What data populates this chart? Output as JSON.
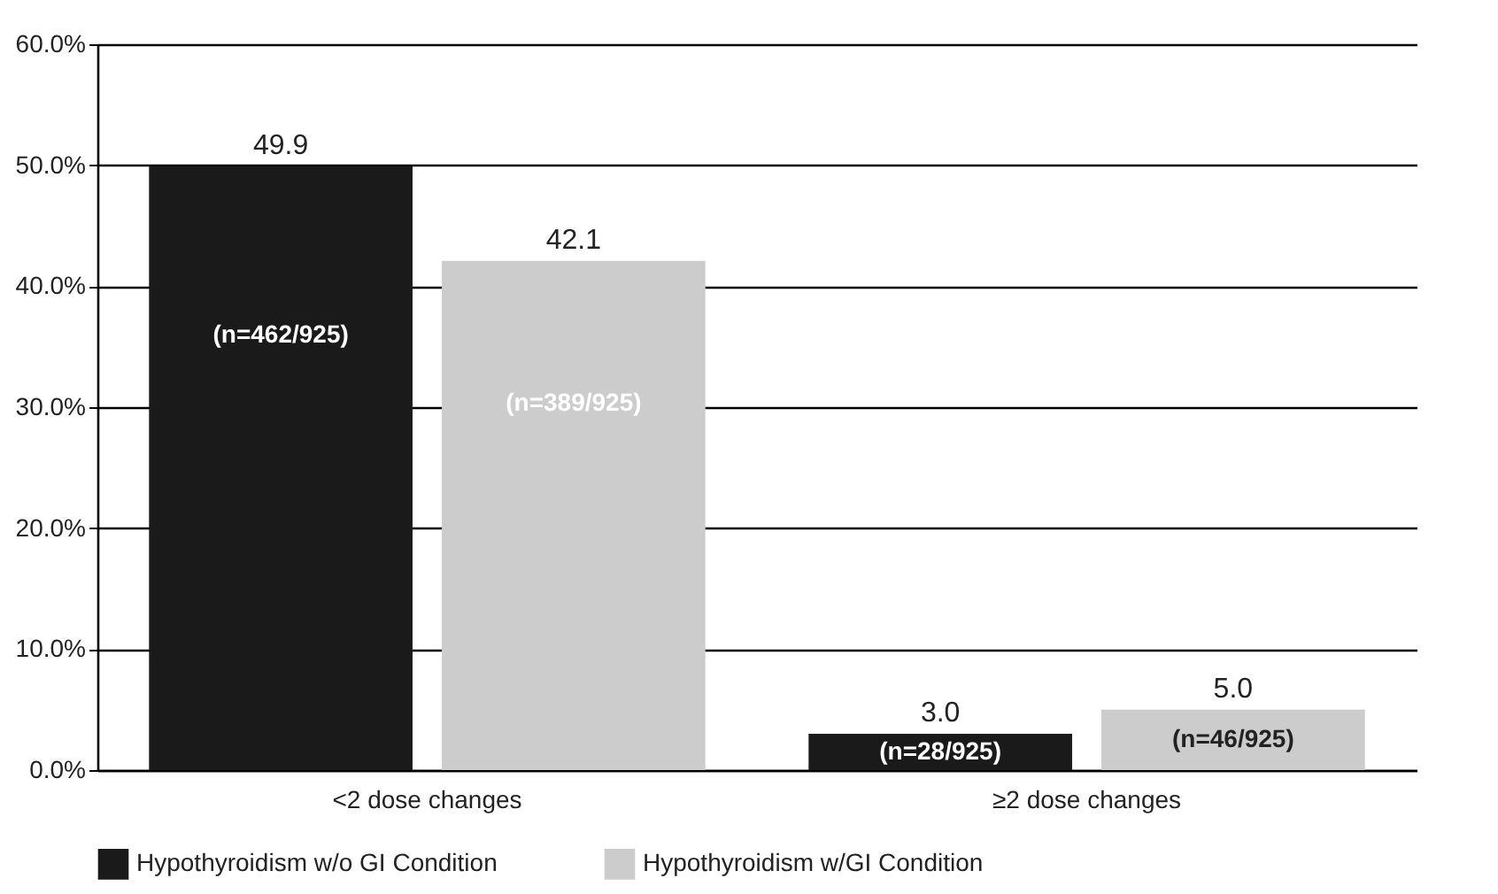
{
  "chart_data": {
    "type": "bar",
    "categories": [
      "<2 dose changes",
      "≥2 dose changes"
    ],
    "series": [
      {
        "name": "Hypothyroidism w/o GI Condition",
        "color": "#1a1a1a",
        "values": [
          49.9,
          3.0
        ],
        "value_labels": [
          "49.9",
          "3.0"
        ]
      },
      {
        "name": "Hypothyroidism w/GI Condition",
        "color": "#cccccc",
        "values": [
          42.1,
          5.0
        ],
        "value_labels": [
          "42.1",
          "5.0"
        ]
      }
    ],
    "annotations": [
      "(n=462/925)",
      "(n=389/925)",
      "(n=28/925)",
      "(n=46/925)"
    ],
    "ylim": [
      0,
      60
    ],
    "yticks": [
      {
        "value": 0,
        "label": "0.0%"
      },
      {
        "value": 10,
        "label": "10.0%"
      },
      {
        "value": 20,
        "label": "20.0%"
      },
      {
        "value": 30,
        "label": "30.0%"
      },
      {
        "value": 40,
        "label": "40.0%"
      },
      {
        "value": 50,
        "label": "50.0%"
      },
      {
        "value": 60,
        "label": "60.0%"
      }
    ],
    "grid": "y",
    "legend": "bottom"
  }
}
